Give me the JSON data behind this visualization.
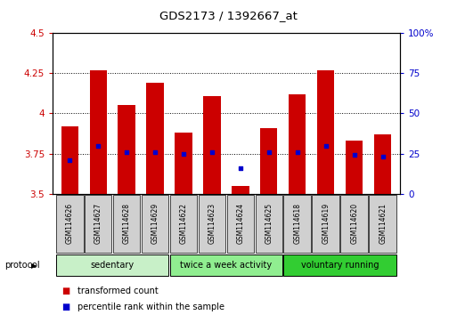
{
  "title": "GDS2173 / 1392667_at",
  "samples": [
    "GSM114626",
    "GSM114627",
    "GSM114628",
    "GSM114629",
    "GSM114622",
    "GSM114623",
    "GSM114624",
    "GSM114625",
    "GSM114618",
    "GSM114619",
    "GSM114620",
    "GSM114621"
  ],
  "bar_tops": [
    3.92,
    4.27,
    4.05,
    4.19,
    3.88,
    4.11,
    3.55,
    3.91,
    4.12,
    4.27,
    3.83,
    3.87
  ],
  "bar_base": 3.5,
  "blue_dots": [
    3.71,
    3.8,
    3.76,
    3.76,
    3.75,
    3.76,
    3.66,
    3.76,
    3.76,
    3.8,
    3.74,
    3.73
  ],
  "groups": [
    {
      "label": "sedentary",
      "indices": [
        0,
        1,
        2,
        3
      ],
      "color": "#c8f0c8"
    },
    {
      "label": "twice a week activity",
      "indices": [
        4,
        5,
        6,
        7
      ],
      "color": "#90ee90"
    },
    {
      "label": "voluntary running",
      "indices": [
        8,
        9,
        10,
        11
      ],
      "color": "#32cd32"
    }
  ],
  "ylim": [
    3.5,
    4.5
  ],
  "y2lim": [
    0,
    100
  ],
  "yticks": [
    3.5,
    3.75,
    4.0,
    4.25,
    4.5
  ],
  "ytick_labels": [
    "3.5",
    "3.75",
    "4",
    "4.25",
    "4.5"
  ],
  "y2ticks": [
    0,
    25,
    50,
    75,
    100
  ],
  "y2tick_labels": [
    "0",
    "25",
    "50",
    "75",
    "100%"
  ],
  "bar_color": "#cc0000",
  "dot_color": "#0000cc",
  "bar_width": 0.6,
  "protocol_label": "protocol",
  "legend_bar_label": "transformed count",
  "legend_dot_label": "percentile rank within the sample",
  "bg_color": "#ffffff",
  "left_label_color": "#cc0000",
  "right_label_color": "#0000cc",
  "sample_box_color": "#d0d0d0",
  "gridline_ticks": [
    3.75,
    4.0,
    4.25
  ]
}
